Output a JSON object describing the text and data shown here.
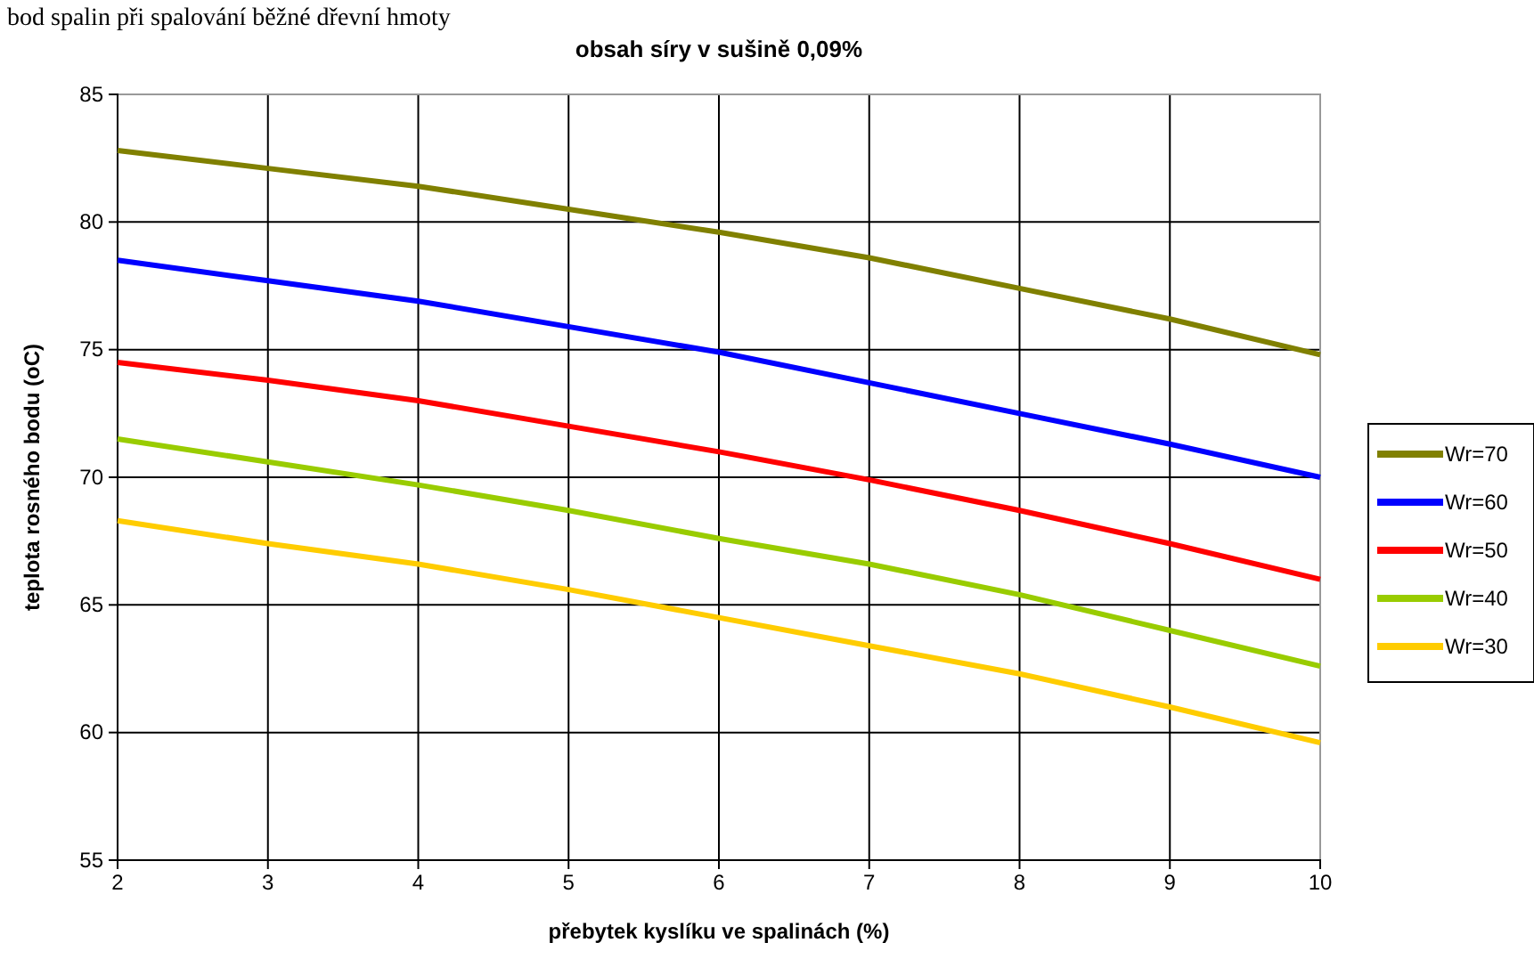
{
  "chart_data": {
    "type": "line",
    "title": "obsah síry v sušině 0,09%",
    "xlabel": "přebytek kyslíku ve spalinách (%)",
    "ylabel": "teplota rosného bodu (oC)",
    "annotations": [
      "bod spalin při spalování běžné dřevní hmoty"
    ],
    "x": [
      2,
      3,
      4,
      5,
      6,
      7,
      8,
      9,
      10
    ],
    "series": [
      {
        "name": "Wr=70",
        "color": "#808000",
        "values": [
          82.8,
          82.1,
          81.4,
          80.5,
          79.6,
          78.6,
          77.4,
          76.2,
          74.8
        ]
      },
      {
        "name": "Wr=60",
        "color": "#0000ff",
        "values": [
          78.5,
          77.7,
          76.9,
          75.9,
          74.9,
          73.7,
          72.5,
          71.3,
          70.0
        ]
      },
      {
        "name": "Wr=50",
        "color": "#ff0000",
        "values": [
          74.5,
          73.8,
          73.0,
          72.0,
          71.0,
          69.9,
          68.7,
          67.4,
          66.0
        ]
      },
      {
        "name": "Wr=40",
        "color": "#99cc00",
        "values": [
          71.5,
          70.6,
          69.7,
          68.7,
          67.6,
          66.6,
          65.4,
          64.0,
          62.6
        ]
      },
      {
        "name": "Wr=30",
        "color": "#ffcc00",
        "values": [
          68.3,
          67.4,
          66.6,
          65.6,
          64.5,
          63.4,
          62.3,
          61.0,
          59.6
        ]
      }
    ],
    "xlim": [
      2,
      10
    ],
    "xticks": [
      2,
      3,
      4,
      5,
      6,
      7,
      8,
      9,
      10
    ],
    "ylim": [
      55,
      85
    ],
    "yticks": [
      55,
      60,
      65,
      70,
      75,
      80,
      85
    ],
    "grid": true,
    "legend": "right",
    "marker": "none",
    "line_style": "solid"
  }
}
